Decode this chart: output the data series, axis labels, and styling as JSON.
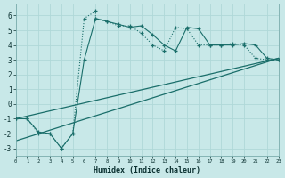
{
  "xlabel": "Humidex (Indice chaleur)",
  "background_color": "#c8e8e8",
  "grid_color": "#b0d8d8",
  "line_color": "#1a6e6a",
  "xlim": [
    0,
    23
  ],
  "ylim": [
    -3.5,
    6.8
  ],
  "xticks": [
    0,
    1,
    2,
    3,
    4,
    5,
    6,
    7,
    8,
    9,
    10,
    11,
    12,
    13,
    14,
    15,
    16,
    17,
    18,
    19,
    20,
    21,
    22,
    23
  ],
  "yticks": [
    -3,
    -2,
    -1,
    0,
    1,
    2,
    3,
    4,
    5,
    6
  ],
  "line1_x": [
    0,
    1,
    2,
    3,
    4,
    5,
    6,
    7,
    7,
    8,
    9,
    10,
    11,
    12,
    13,
    14,
    15,
    16,
    17,
    18,
    19,
    20,
    21,
    22,
    23
  ],
  "line1_y": [
    -1,
    -1,
    -2,
    -2,
    -3,
    -2,
    5.8,
    6.3,
    5.8,
    5.6,
    5.3,
    5.3,
    4.8,
    4.0,
    3.6,
    5.2,
    5.1,
    4.0,
    4.0,
    4.0,
    4.1,
    4.0,
    3.1,
    3.0,
    3.0
  ],
  "line2_x": [
    0,
    1,
    2,
    3,
    4,
    5,
    6,
    7,
    8,
    9,
    10,
    11,
    12,
    13,
    14,
    15,
    16,
    17,
    18,
    19,
    20,
    21,
    22,
    23
  ],
  "line2_y": [
    -1,
    -1,
    -1.9,
    -2,
    -3.0,
    -2,
    3.0,
    5.8,
    5.6,
    5.4,
    5.2,
    5.3,
    4.7,
    4.0,
    3.6,
    5.2,
    5.1,
    4.0,
    4.0,
    4.0,
    4.1,
    4.0,
    3.1,
    3.0
  ],
  "line3_x": [
    0,
    23
  ],
  "line3_y": [
    -1.0,
    3.1
  ],
  "line4_x": [
    0,
    23
  ],
  "line4_y": [
    -2.5,
    3.1
  ]
}
